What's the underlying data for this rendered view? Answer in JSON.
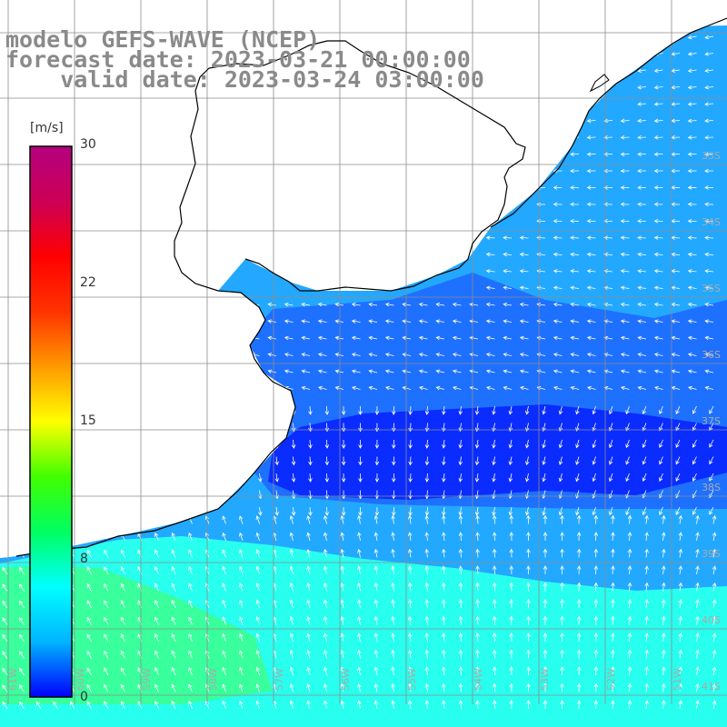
{
  "header": {
    "line1": "modelo GEFS-WAVE (NCEP)",
    "line2": "forecast date: 2023-03-21 00:00:00",
    "line3": "    valid date: 2023-03-24 03:00:00"
  },
  "colorbar": {
    "unit": "[m/s]",
    "ticks": [
      "30",
      "22",
      "15",
      "8",
      "0"
    ],
    "tick_values": [
      30,
      22,
      15,
      8,
      0
    ],
    "range": [
      0,
      30
    ],
    "colors": [
      "#0000ff",
      "#00b4ff",
      "#00ffff",
      "#00ff60",
      "#40ff00",
      "#ffff00",
      "#ff9900",
      "#ff3300",
      "#ff0000",
      "#cc0055",
      "#b4007f"
    ]
  },
  "map": {
    "field": "wind speed and direction",
    "lon_labels": [
      "61W",
      "60W",
      "59W",
      "58W",
      "57W",
      "56W",
      "55W",
      "54W",
      "53W",
      "52W",
      "51W"
    ],
    "lat_labels": [
      "33S",
      "34S",
      "35S",
      "36S",
      "37S",
      "38S",
      "39S",
      "40S",
      "41S"
    ],
    "ocean_colors": {
      "dark_blue": "#0a2cff",
      "mid_blue": "#1e70ff",
      "light_blue": "#23a8ff",
      "cyan": "#28ffee",
      "green": "#39ff9c"
    },
    "land_color": "#ffffff",
    "grid_color": "#8c8c8c",
    "arrow_color": "#ffffff"
  }
}
